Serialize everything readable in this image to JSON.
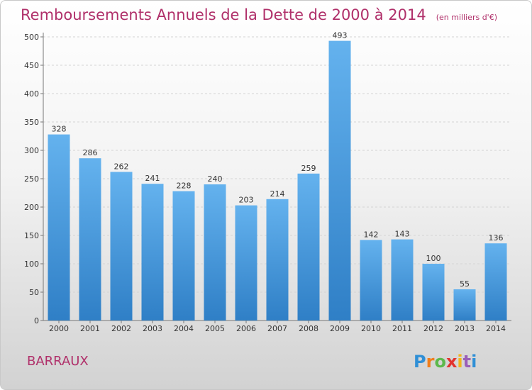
{
  "title": "Remboursements Annuels de la Dette de 2000 à 2014",
  "subtitle": "(en milliers d'€)",
  "commune": "BARRAUX",
  "brand": {
    "letters": [
      "P",
      "r",
      "o",
      "x",
      "i",
      "t",
      "i"
    ],
    "colors": [
      "#2f8fd6",
      "#f07d1a",
      "#5db84c",
      "#e2332f",
      "#f2b51c",
      "#9a5fb8",
      "#2f8fd6"
    ]
  },
  "colors": {
    "bar": "#3d8fd8",
    "bar_light": "#64b2ee",
    "title": "#b0306a"
  },
  "chart_data": {
    "type": "bar",
    "categories": [
      "2000",
      "2001",
      "2002",
      "2003",
      "2004",
      "2005",
      "2006",
      "2007",
      "2008",
      "2009",
      "2010",
      "2011",
      "2012",
      "2013",
      "2014"
    ],
    "values": [
      328,
      286,
      262,
      241,
      228,
      240,
      203,
      214,
      259,
      493,
      142,
      143,
      100,
      55,
      136
    ],
    "ylim": [
      0,
      500
    ],
    "yticks": [
      0,
      50,
      100,
      150,
      200,
      250,
      300,
      350,
      400,
      450,
      500
    ],
    "grid": true,
    "xlabel": "",
    "ylabel": ""
  }
}
